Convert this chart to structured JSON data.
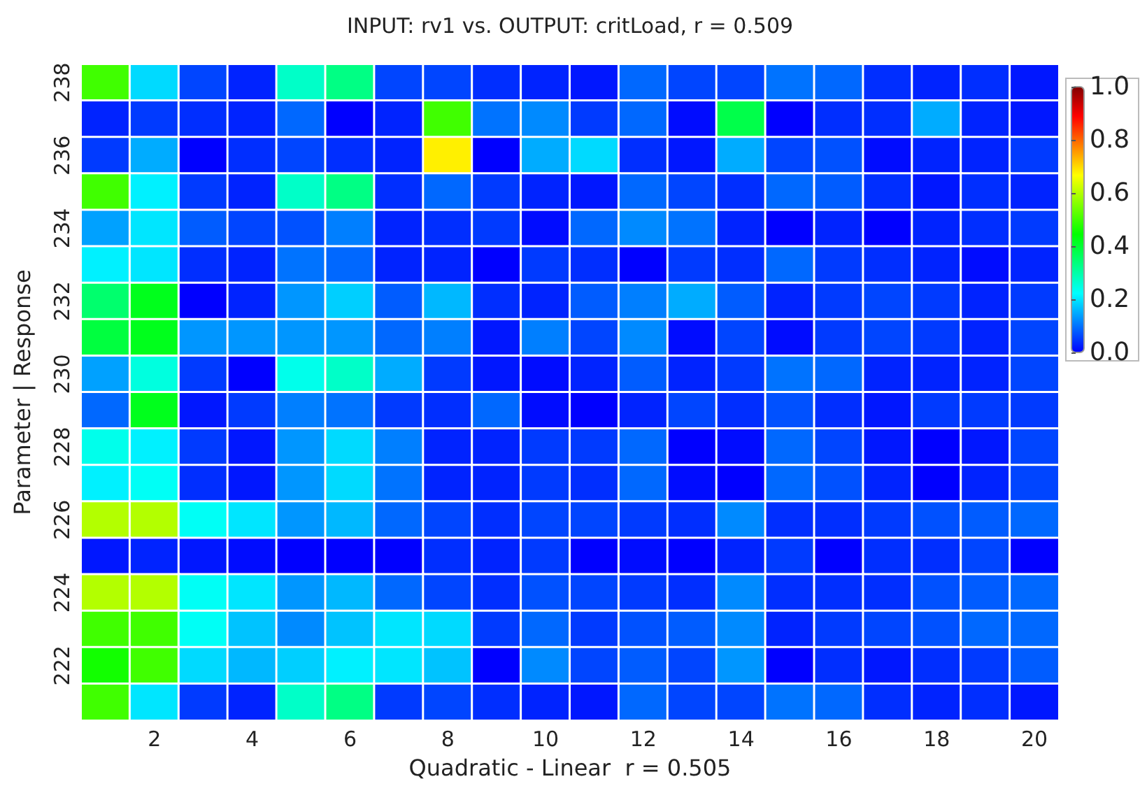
{
  "chart_data": {
    "type": "heatmap",
    "title": "INPUT: rv1 vs. OUTPUT: critLoad, r = 0.509",
    "xlabel": "Quadratic - Linear  r = 0.505",
    "ylabel": "Parameter | Response",
    "categories": [
      null,
      "2",
      null,
      "4",
      null,
      "6",
      null,
      "8",
      null,
      "10",
      null,
      "12",
      null,
      "14",
      null,
      "16",
      null,
      "18",
      null,
      "20"
    ],
    "y_categories": [
      "238",
      null,
      "236",
      null,
      "234",
      null,
      "232",
      null,
      "230",
      null,
      "228",
      null,
      "226",
      null,
      "224",
      null,
      "222",
      null
    ],
    "cells": [
      [
        0.5,
        0.19,
        0.06,
        0.03,
        0.27,
        0.33,
        0.06,
        0.06,
        0.04,
        0.03,
        0.02,
        0.09,
        0.06,
        0.06,
        0.1,
        0.09,
        0.04,
        0.03,
        0.04,
        0.02
      ],
      [
        0.03,
        0.05,
        0.04,
        0.03,
        0.09,
        0.0,
        0.03,
        0.5,
        0.1,
        0.12,
        0.05,
        0.09,
        0.01,
        0.38,
        0.0,
        0.04,
        0.04,
        0.15,
        0.03,
        0.02
      ],
      [
        0.05,
        0.15,
        0.0,
        0.04,
        0.06,
        0.04,
        0.03,
        0.68,
        0.0,
        0.15,
        0.19,
        0.04,
        0.02,
        0.15,
        0.06,
        0.07,
        0.01,
        0.03,
        0.03,
        0.05
      ],
      [
        0.5,
        0.21,
        0.05,
        0.03,
        0.27,
        0.33,
        0.04,
        0.09,
        0.05,
        0.03,
        0.02,
        0.09,
        0.06,
        0.04,
        0.09,
        0.08,
        0.04,
        0.02,
        0.04,
        0.03
      ],
      [
        0.14,
        0.2,
        0.08,
        0.06,
        0.07,
        0.11,
        0.03,
        0.04,
        0.05,
        0.01,
        0.09,
        0.12,
        0.1,
        0.03,
        0.0,
        0.03,
        0.0,
        0.03,
        0.04,
        0.05
      ],
      [
        0.21,
        0.2,
        0.04,
        0.03,
        0.1,
        0.09,
        0.03,
        0.03,
        0.0,
        0.05,
        0.04,
        0.0,
        0.05,
        0.04,
        0.09,
        0.05,
        0.04,
        0.03,
        0.01,
        0.03
      ],
      [
        0.35,
        0.42,
        0.0,
        0.03,
        0.13,
        0.18,
        0.08,
        0.16,
        0.04,
        0.03,
        0.08,
        0.11,
        0.15,
        0.08,
        0.03,
        0.05,
        0.06,
        0.05,
        0.03,
        0.05
      ],
      [
        0.39,
        0.42,
        0.13,
        0.13,
        0.13,
        0.13,
        0.09,
        0.11,
        0.02,
        0.11,
        0.06,
        0.12,
        0.01,
        0.06,
        0.01,
        0.05,
        0.06,
        0.05,
        0.03,
        0.06
      ],
      [
        0.14,
        0.25,
        0.05,
        0.0,
        0.24,
        0.27,
        0.15,
        0.05,
        0.02,
        0.01,
        0.03,
        0.08,
        0.03,
        0.05,
        0.1,
        0.09,
        0.03,
        0.03,
        0.03,
        0.06
      ],
      [
        0.09,
        0.42,
        0.02,
        0.05,
        0.11,
        0.1,
        0.05,
        0.04,
        0.09,
        0.01,
        0.0,
        0.03,
        0.06,
        0.04,
        0.07,
        0.04,
        0.02,
        0.05,
        0.05,
        0.05
      ],
      [
        0.24,
        0.21,
        0.05,
        0.02,
        0.13,
        0.19,
        0.11,
        0.03,
        0.03,
        0.05,
        0.05,
        0.09,
        0.0,
        0.01,
        0.09,
        0.06,
        0.02,
        0.0,
        0.02,
        0.06
      ],
      [
        0.21,
        0.23,
        0.04,
        0.02,
        0.13,
        0.19,
        0.1,
        0.03,
        0.03,
        0.05,
        0.04,
        0.09,
        0.01,
        0.0,
        0.09,
        0.07,
        0.03,
        0.0,
        0.03,
        0.06
      ],
      [
        0.6,
        0.6,
        0.23,
        0.2,
        0.13,
        0.16,
        0.09,
        0.06,
        0.04,
        0.06,
        0.06,
        0.05,
        0.04,
        0.12,
        0.04,
        0.04,
        0.05,
        0.07,
        0.08,
        0.09
      ],
      [
        0.02,
        0.03,
        0.02,
        0.01,
        0.0,
        0.0,
        0.0,
        0.04,
        0.03,
        0.05,
        0.0,
        0.01,
        0.0,
        0.03,
        0.05,
        0.0,
        0.04,
        0.04,
        0.06,
        0.0
      ],
      [
        0.6,
        0.6,
        0.23,
        0.2,
        0.13,
        0.16,
        0.09,
        0.06,
        0.04,
        0.07,
        0.06,
        0.05,
        0.04,
        0.12,
        0.04,
        0.04,
        0.04,
        0.07,
        0.08,
        0.09
      ],
      [
        0.5,
        0.5,
        0.23,
        0.17,
        0.12,
        0.17,
        0.2,
        0.19,
        0.05,
        0.09,
        0.05,
        0.07,
        0.08,
        0.12,
        0.03,
        0.05,
        0.06,
        0.07,
        0.09,
        0.09
      ],
      [
        0.46,
        0.5,
        0.19,
        0.16,
        0.18,
        0.21,
        0.2,
        0.17,
        0.0,
        0.12,
        0.06,
        0.08,
        0.06,
        0.13,
        0.0,
        0.04,
        0.02,
        0.04,
        0.05,
        0.08
      ],
      [
        0.5,
        0.2,
        0.05,
        0.03,
        0.27,
        0.33,
        0.05,
        0.06,
        0.04,
        0.03,
        0.02,
        0.09,
        0.06,
        0.06,
        0.1,
        0.09,
        0.04,
        0.03,
        0.04,
        0.02
      ]
    ],
    "clim": [
      0,
      1
    ],
    "cticks": [
      {
        "value": 0,
        "label": "0.0"
      },
      {
        "value": 0.2,
        "label": "0.2"
      },
      {
        "value": 0.4,
        "label": "0.4"
      },
      {
        "value": 0.6,
        "label": "0.6"
      },
      {
        "value": 0.8,
        "label": "0.8"
      },
      {
        "value": 1,
        "label": "1.0"
      }
    ]
  }
}
